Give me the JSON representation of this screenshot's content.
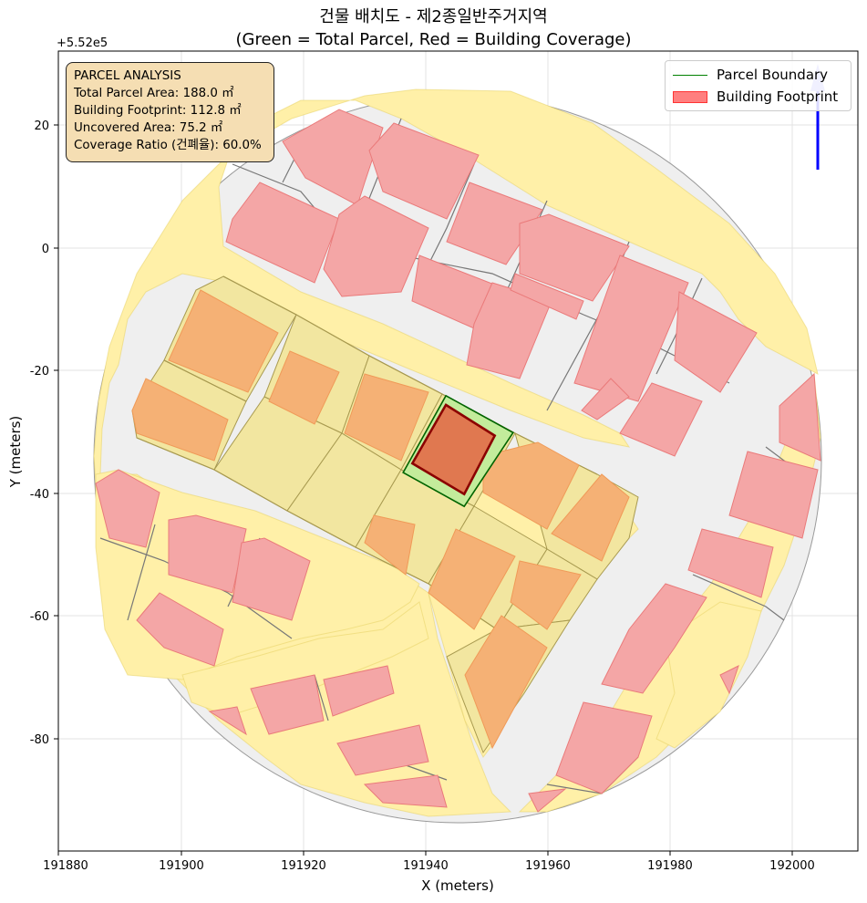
{
  "title": {
    "line1": "건물 배치도 - 제2종일반주거지역",
    "line2": "(Green = Total Parcel, Red = Building Coverage)"
  },
  "axes": {
    "xlabel": "X (meters)",
    "ylabel": "Y (meters)",
    "offset_text": "+5.52e5",
    "xticks": [
      "191880",
      "191900",
      "191920",
      "191940",
      "191960",
      "191980",
      "192000"
    ],
    "yticks": [
      "20",
      "0",
      "-20",
      "-40",
      "-60",
      "-80"
    ],
    "xlim": [
      191879.5,
      192010.5
    ],
    "ylim": [
      -98.5,
      31.5
    ]
  },
  "legend": {
    "parcel_label": "Parcel Boundary",
    "building_label": "Building Footprint"
  },
  "info": {
    "heading": "PARCEL ANALYSIS",
    "total": "Total Parcel Area: 188.0 ㎡",
    "footprint": "Building Footprint: 112.8 ㎡",
    "uncovered": "Uncovered Area: 75.2 ㎡",
    "ratio": "Coverage Ratio (건폐율): 60.0%"
  },
  "colors": {
    "road": "#fff0a8",
    "block": "#efefef",
    "building": "#f4a6a6",
    "neighbor_parcel": "#f2e6a0",
    "neighbor_building": "#f5b175",
    "target_parcel_fill": "#c3ec9b",
    "target_parcel_edge": "#006400",
    "target_building_fill": "#e07850",
    "target_building_edge": "#8b0000",
    "north_arrow": "#0000ff"
  },
  "map": {
    "target_parcel": [
      [
        191943,
        -24.5
      ],
      [
        191954,
        -30.5
      ],
      [
        191946,
        -42.5
      ],
      [
        191936,
        -37
      ]
    ],
    "target_building": [
      [
        191943,
        -26
      ],
      [
        191951,
        -31
      ],
      [
        191946,
        -40.5
      ],
      [
        191937.5,
        -35.5
      ]
    ]
  }
}
